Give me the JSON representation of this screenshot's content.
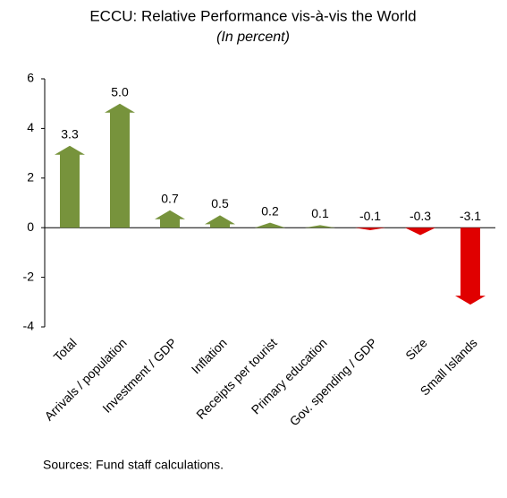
{
  "chart_data": {
    "type": "bar",
    "title": "ECCU: Relative Performance vis-à-vis the World",
    "subtitle": "(In percent)",
    "categories": [
      "Total",
      "Arrivals / population",
      "Investment / GDP",
      "Inflation",
      "Receipts per tourist",
      "Primary education",
      "Gov. spending / GDP",
      "Size",
      "Small Islands"
    ],
    "values": [
      3.3,
      5.0,
      0.7,
      0.5,
      0.2,
      0.1,
      -0.1,
      -0.3,
      -3.1
    ],
    "value_labels": [
      "3.3",
      "5.0",
      "0.7",
      "0.5",
      "0.2",
      "0.1",
      "-0.1",
      "-0.3",
      "-3.1"
    ],
    "colors": [
      "#77933c",
      "#77933c",
      "#77933c",
      "#77933c",
      "#77933c",
      "#77933c",
      "#e00000",
      "#e00000",
      "#e00000"
    ],
    "ylim": [
      -4,
      6
    ],
    "yticks": [
      -4,
      -2,
      0,
      2,
      4,
      6
    ],
    "grid": false,
    "note": "Sources: Fund staff calculations."
  }
}
